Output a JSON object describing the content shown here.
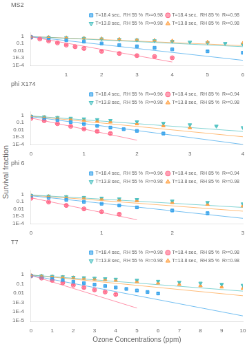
{
  "chart_data": [
    {
      "type": "scatter",
      "title": "MS2",
      "log": "y",
      "grid": false,
      "legend": "upper right",
      "ylabel": "Survival fraction",
      "xlim": [
        0,
        6
      ],
      "xticks": [
        1,
        2,
        3,
        4,
        5,
        6
      ],
      "ylim": [
        8e-05,
        3
      ],
      "yticks": [
        {
          "value": 0.0001,
          "label": "1E-4"
        },
        {
          "value": 0.001,
          "label": "1E-3"
        },
        0.01,
        0.1,
        1
      ],
      "series": [
        {
          "name": "T=18.4 sec,  RH 55 %  R²=0.98",
          "marker": "square",
          "x": [
            0.0,
            0.5,
            1.0,
            1.5,
            2.0,
            2.5,
            3.0,
            3.5,
            4.0,
            5.0,
            6.0
          ],
          "values": [
            0.75,
            0.5,
            0.28,
            0.18,
            0.1,
            0.06,
            0.04,
            0.025,
            0.015,
            0.008,
            0.005
          ],
          "yerr": [
            0.05,
            0.04,
            0.03,
            0.02,
            0.012,
            0.008,
            0.006,
            0.004,
            0.003,
            0.002,
            0.001
          ],
          "fit": {
            "x": [
              0,
              6
            ],
            "values": [
              0.891251,
              0.000446684
            ]
          }
        },
        {
          "name": "T=18.4 sec,  RH 85 %  R²=0.98",
          "marker": "circle",
          "x": [
            0.0,
            0.25,
            0.5,
            0.75,
            1.0,
            1.25,
            1.5,
            2.0,
            2.5,
            3.0,
            3.5,
            4.0
          ],
          "values": [
            0.72,
            0.42,
            0.22,
            0.12,
            0.06,
            0.035,
            0.02,
            0.008,
            0.004,
            0.002,
            0.0015,
            0.001
          ],
          "yerr": [
            0.06,
            0.04,
            0.03,
            0.02,
            0.01,
            0.007,
            0.004,
            0.002,
            0.001,
            0.0005,
            0.0003,
            0.0002
          ],
          "fit": {
            "x": [
              0,
              4
            ],
            "values": [
              0.851138,
              0.00025704
            ]
          }
        },
        {
          "name": "T=13.8 sec,  RH 55 %  R²=0.98",
          "marker": "triangle_down",
          "x": [
            0.0,
            0.5,
            1.0,
            1.5,
            2.0,
            2.5,
            3.0,
            3.5,
            4.0,
            4.5,
            5.0,
            5.5,
            6.0
          ],
          "values": [
            0.82,
            0.72,
            0.62,
            0.52,
            0.43,
            0.36,
            0.3,
            0.24,
            0.2,
            0.155,
            0.125,
            0.1,
            0.08
          ],
          "yerr": [
            0.05,
            0.04,
            0.04,
            0.03,
            0.03,
            0.025,
            0.02,
            0.018,
            0.015,
            0.012,
            0.01,
            0.009,
            0.007
          ],
          "fit": {
            "x": [
              0,
              6
            ],
            "values": [
              0.912011,
              0.0354813
            ]
          }
        },
        {
          "name": "T=13.8 sec,  RH 85 %  R²=0.98",
          "marker": "triangle_up",
          "x": [
            0.0,
            0.5,
            1.0,
            1.5,
            2.0,
            2.5,
            3.0,
            3.5,
            4.0,
            5.0,
            6.0
          ],
          "values": [
            0.82,
            0.72,
            0.63,
            0.54,
            0.46,
            0.38,
            0.32,
            0.27,
            0.22,
            0.155,
            0.105
          ],
          "yerr": [
            0.05,
            0.04,
            0.04,
            0.03,
            0.03,
            0.025,
            0.02,
            0.018,
            0.015,
            0.012,
            0.008
          ],
          "fit": {
            "x": [
              0,
              6
            ],
            "values": [
              0.912011,
              0.0501187
            ]
          }
        }
      ]
    },
    {
      "type": "scatter",
      "title": "phi X174",
      "log": "y",
      "grid": false,
      "legend": "upper right",
      "xlim": [
        0,
        4
      ],
      "xticks": [
        0,
        1,
        2,
        3,
        4
      ],
      "ylim": [
        8e-05,
        3
      ],
      "yticks": [
        {
          "value": 0.0001,
          "label": "1E-4"
        },
        {
          "value": 0.001,
          "label": "1E-3"
        },
        0.01,
        0.1,
        1
      ],
      "series": [
        {
          "name": "T=18.4 sec,  RH 55 %  R²=0.96",
          "marker": "square",
          "x": [
            0.0,
            0.25,
            0.5,
            0.75,
            1.0,
            1.25,
            1.5,
            1.75,
            2.0,
            2.5
          ],
          "values": [
            0.62,
            0.38,
            0.22,
            0.12,
            0.065,
            0.035,
            0.02,
            0.012,
            0.007,
            0.003
          ],
          "yerr": [
            0.05,
            0.03,
            0.02,
            0.015,
            0.01,
            0.007,
            0.004,
            0.003,
            0.002,
            0.001
          ],
          "fit": {
            "x": [
              0,
              4
            ],
            "values": [
              0.676083,
              8.91251e-05
            ]
          }
        },
        {
          "name": "T=18.4 sec,  RH 85 %  R²=0.94",
          "marker": "circle",
          "x": [
            0.0,
            0.25,
            0.5,
            0.75,
            1.0,
            1.25,
            1.5
          ],
          "values": [
            0.38,
            0.18,
            0.07,
            0.03,
            0.013,
            0.006,
            0.003
          ],
          "yerr": [
            0.04,
            0.02,
            0.01,
            0.006,
            0.003,
            0.002,
            0.001
          ],
          "fit": {
            "x": [
              0,
              2
            ],
            "values": [
              0.436516,
              0.000346737
            ]
          }
        },
        {
          "name": "T=13.8 sec,  RH 55 %  R²=0.98",
          "marker": "triangle_down",
          "x": [
            0.0,
            0.25,
            0.5,
            0.75,
            1.0,
            1.25,
            1.5,
            2.0,
            2.5,
            3.0,
            3.5,
            4.0
          ],
          "values": [
            0.78,
            0.63,
            0.52,
            0.41,
            0.33,
            0.26,
            0.2,
            0.13,
            0.08,
            0.05,
            0.032,
            0.02
          ],
          "yerr": [
            0.05,
            0.04,
            0.03,
            0.03,
            0.025,
            0.02,
            0.015,
            0.012,
            0.008,
            0.005,
            0.004,
            0.003
          ],
          "fit": {
            "x": [
              0,
              4
            ],
            "values": [
              0.851138,
              0.00588844
            ]
          }
        },
        {
          "name": "T=13.8 sec,  RH 85 %  R²=0.98",
          "marker": "triangle_up",
          "x": [
            0.0,
            0.25,
            0.5,
            0.75,
            1.0,
            1.25,
            1.5,
            2.0,
            2.5,
            3.0
          ],
          "values": [
            0.72,
            0.55,
            0.42,
            0.3,
            0.22,
            0.16,
            0.12,
            0.065,
            0.035,
            0.019
          ],
          "yerr": [
            0.05,
            0.04,
            0.03,
            0.025,
            0.02,
            0.015,
            0.012,
            0.008,
            0.005,
            0.003
          ],
          "fit": {
            "x": [
              0,
              4
            ],
            "values": [
              0.794328,
              0.00104713
            ]
          }
        }
      ]
    },
    {
      "type": "scatter",
      "title": "phi 6",
      "log": "y",
      "grid": false,
      "legend": "upper right",
      "xlim": [
        0,
        3
      ],
      "xticks": [
        0,
        1,
        2,
        3
      ],
      "ylim": [
        8e-05,
        3
      ],
      "yticks": [
        {
          "value": 0.0001,
          "label": "1E-4"
        },
        {
          "value": 0.001,
          "label": "1E-3"
        },
        0.01,
        0.1,
        1
      ],
      "series": [
        {
          "name": "T=18.4 sec,  RH 55 %  R²=0.96",
          "marker": "square",
          "x": [
            0.0,
            0.25,
            0.5,
            0.75,
            1.0,
            1.25,
            1.5,
            2.0,
            2.5
          ],
          "values": [
            0.62,
            0.35,
            0.18,
            0.095,
            0.052,
            0.03,
            0.016,
            0.006,
            0.0025
          ],
          "yerr": [
            0.05,
            0.03,
            0.02,
            0.012,
            0.008,
            0.005,
            0.003,
            0.002,
            0.001
          ],
          "fit": {
            "x": [
              0,
              3
            ],
            "values": [
              0.676083,
              0.00047863
            ]
          }
        },
        {
          "name": "T=18.4 sec,  RH 85 %  R²=0.94",
          "marker": "circle",
          "x": [
            0.0,
            0.25,
            0.5,
            0.75,
            1.0,
            1.25
          ],
          "values": [
            0.3,
            0.09,
            0.03,
            0.01,
            0.004,
            0.0018
          ],
          "yerr": [
            0.04,
            0.02,
            0.008,
            0.003,
            0.001,
            0.0005
          ],
          "fit": {
            "x": [
              0,
              1.5
            ],
            "values": [
              0.354813,
              0.000298538
            ]
          }
        },
        {
          "name": "T=13.8 sec,  RH 55 %  R²=0.98",
          "marker": "triangle_down",
          "x": [
            0.0,
            0.25,
            0.5,
            0.75,
            1.0,
            1.25,
            1.5,
            2.0,
            2.5,
            3.0
          ],
          "values": [
            0.78,
            0.62,
            0.5,
            0.4,
            0.32,
            0.25,
            0.2,
            0.125,
            0.078,
            0.05
          ],
          "yerr": [
            0.05,
            0.04,
            0.03,
            0.025,
            0.02,
            0.018,
            0.015,
            0.012,
            0.008,
            0.005
          ],
          "fit": {
            "x": [
              0,
              3
            ],
            "values": [
              0.870964,
              0.0158489
            ]
          }
        },
        {
          "name": "T=13.8 sec,  RH 85 %  R²=0.98",
          "marker": "triangle_up",
          "x": [
            0.0,
            0.25,
            0.5,
            0.75,
            1.0,
            1.25,
            1.5,
            2.0,
            2.5,
            3.0
          ],
          "values": [
            0.72,
            0.55,
            0.42,
            0.32,
            0.24,
            0.18,
            0.135,
            0.075,
            0.042,
            0.025
          ],
          "yerr": [
            0.05,
            0.04,
            0.03,
            0.025,
            0.02,
            0.015,
            0.012,
            0.008,
            0.006,
            0.004
          ],
          "fit": {
            "x": [
              0,
              3
            ],
            "values": [
              0.794328,
              0.0047863
            ]
          }
        }
      ]
    },
    {
      "type": "scatter",
      "title": "T7",
      "log": "y",
      "grid": false,
      "legend": "upper right",
      "xlabel": "Ozone Concentrations (ppm)",
      "xlim": [
        0,
        10
      ],
      "xticks": [
        0,
        1,
        2,
        3,
        4,
        5,
        6,
        7,
        8,
        9,
        10
      ],
      "ylim": [
        8e-06,
        3
      ],
      "yticks": [
        {
          "value": 1e-05,
          "label": "1E-5"
        },
        {
          "value": 0.0001,
          "label": "1E-4"
        },
        {
          "value": 0.001,
          "label": "1E-3"
        },
        0.01,
        0.1,
        1
      ],
      "series": [
        {
          "name": "T=18.4 sec,  RH 55 %  R²=0.98",
          "marker": "square",
          "x": [
            0.0,
            0.5,
            1.0,
            1.5,
            2.0,
            2.5,
            3.0,
            3.5,
            4.0,
            4.5,
            5.0,
            5.5,
            6.0
          ],
          "values": [
            0.75,
            0.52,
            0.36,
            0.25,
            0.17,
            0.12,
            0.082,
            0.057,
            0.04,
            0.028,
            0.019,
            0.013,
            0.009
          ],
          "yerr": [
            0.05,
            0.04,
            0.03,
            0.025,
            0.02,
            0.015,
            0.012,
            0.009,
            0.007,
            0.005,
            0.004,
            0.003,
            0.002
          ],
          "fit": {
            "x": [
              0,
              10
            ],
            "values": [
              0.831764,
              3.31131e-05
            ]
          }
        },
        {
          "name": "T=18.4 sec,  RH 85 %  R²=0.98",
          "marker": "circle",
          "x": [
            0.0,
            0.5,
            1.0,
            1.5,
            2.0,
            2.5,
            3.0,
            3.5,
            4.0
          ],
          "values": [
            0.72,
            0.42,
            0.24,
            0.13,
            0.072,
            0.04,
            0.022,
            0.013,
            0.007
          ],
          "yerr": [
            0.05,
            0.04,
            0.03,
            0.02,
            0.012,
            0.008,
            0.005,
            0.003,
            0.002
          ],
          "fit": {
            "x": [
              0,
              5
            ],
            "values": [
              0.831764,
              0.000234423
            ]
          }
        },
        {
          "name": "T=13.8 sec,  RH 55 %  R²=0.98",
          "marker": "triangle_down",
          "x": [
            0.0,
            0.5,
            1.0,
            1.5,
            2.0,
            2.5,
            3.0,
            3.5,
            4.0,
            5.0,
            6.0,
            7.0,
            8.0,
            9.0,
            10.0
          ],
          "values": [
            0.82,
            0.74,
            0.66,
            0.59,
            0.52,
            0.46,
            0.41,
            0.36,
            0.32,
            0.25,
            0.19,
            0.15,
            0.12,
            0.09,
            0.07
          ],
          "yerr": [
            0.05,
            0.04,
            0.04,
            0.035,
            0.03,
            0.028,
            0.025,
            0.022,
            0.02,
            0.016,
            0.013,
            0.01,
            0.009,
            0.007,
            0.006
          ],
          "fit": {
            "x": [
              0,
              10
            ],
            "values": [
              0.912011,
              0.0162181
            ]
          }
        },
        {
          "name": "T=13.8 sec,  RH 85 %  R²=0.98",
          "marker": "triangle_up",
          "x": [
            0.0,
            0.5,
            1.0,
            1.5,
            2.0,
            2.5,
            3.0,
            3.5,
            4.0,
            5.0,
            6.0,
            7.0,
            8.0,
            9.0,
            10.0
          ],
          "values": [
            0.82,
            0.72,
            0.62,
            0.53,
            0.46,
            0.39,
            0.33,
            0.28,
            0.24,
            0.17,
            0.12,
            0.086,
            0.062,
            0.045,
            0.032
          ],
          "yerr": [
            0.05,
            0.04,
            0.04,
            0.035,
            0.03,
            0.025,
            0.022,
            0.02,
            0.018,
            0.014,
            0.01,
            0.008,
            0.006,
            0.005,
            0.004
          ],
          "fit": {
            "x": [
              0,
              10
            ],
            "values": [
              0.912011,
              0.00512861
            ]
          }
        }
      ]
    }
  ]
}
